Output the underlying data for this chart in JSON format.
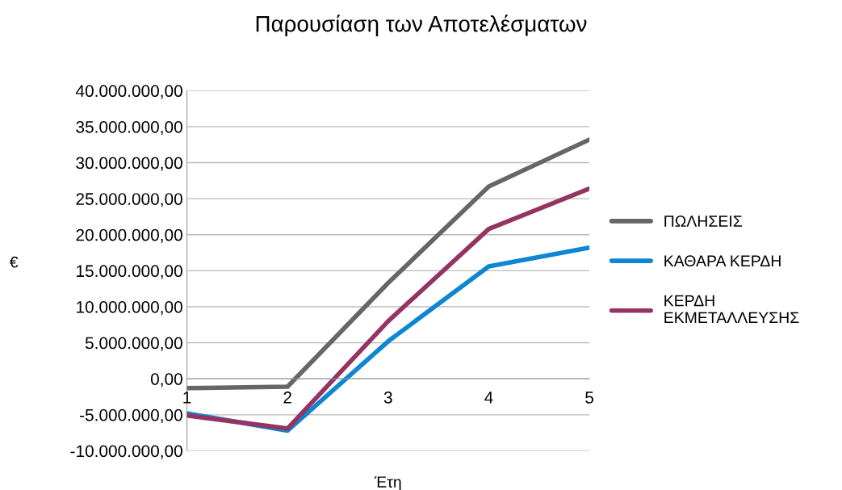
{
  "chart_data": {
    "type": "line",
    "title": "Παρουσίαση των Αποτελέσματων",
    "xlabel": "Έτη",
    "ylabel": "€",
    "x": [
      1,
      2,
      3,
      4,
      5
    ],
    "xlim": [
      1,
      5
    ],
    "xticks": [
      1,
      2,
      3,
      4,
      5
    ],
    "ylim": [
      -10000000,
      40000000
    ],
    "yticks": [
      {
        "value": -10000000,
        "label": "-10.000.000,00"
      },
      {
        "value": -5000000,
        "label": "-5.000.000,00"
      },
      {
        "value": 0,
        "label": "0,00"
      },
      {
        "value": 5000000,
        "label": "5.000.000,00"
      },
      {
        "value": 10000000,
        "label": "10.000.000,00"
      },
      {
        "value": 15000000,
        "label": "15.000.000,00"
      },
      {
        "value": 20000000,
        "label": "20.000.000,00"
      },
      {
        "value": 25000000,
        "label": "25.000.000,00"
      },
      {
        "value": 30000000,
        "label": "30.000.000,00"
      },
      {
        "value": 35000000,
        "label": "35.000.000,00"
      },
      {
        "value": 40000000,
        "label": "40.000.000,00"
      }
    ],
    "series": [
      {
        "name": "ΠΩΛΗΣΕΙΣ",
        "color": "#666666",
        "values": [
          -1300000,
          -1100000,
          13300000,
          26700000,
          33200000
        ]
      },
      {
        "name": "ΚΑΘΑΡΑ ΚΕΡΔΗ",
        "color": "#0f86d1",
        "values": [
          -4800000,
          -7200000,
          5200000,
          15600000,
          18200000
        ]
      },
      {
        "name": "ΚΕΡΔΗ\nΕΚΜΕΤΑΛΛΕΥΣΗΣ",
        "color": "#953462",
        "values": [
          -5100000,
          -6900000,
          8000000,
          20800000,
          26400000
        ]
      }
    ],
    "grid": "y",
    "legend": "right",
    "marker": "none",
    "line_style": "solid"
  }
}
